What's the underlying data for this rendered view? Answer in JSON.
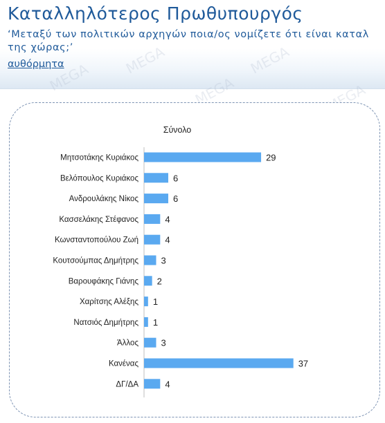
{
  "header": {
    "title": "Καταλληλότερος Πρωθυπουργός",
    "subtitle": "‘Μεταξύ των πολιτικών αρχηγών ποια/ος νομίζετε ότι είναι καταλ\nτης χώρας;’",
    "note": "αυθόρμητα"
  },
  "watermark_text": "MEGA",
  "colors": {
    "title": "#1f5a9a",
    "bar": "#5aa9f0",
    "panel_border": "#7d93b3"
  },
  "chart_data": {
    "type": "bar",
    "orientation": "horizontal",
    "title": "Σύνολο",
    "categories": [
      "Μητσοτάκης Κυριάκος",
      "Βελόπουλος Κυριάκος",
      "Ανδρουλάκης Νίκος",
      "Κασσελάκης Στέφανος",
      "Κωνσταντοπούλου Ζωή",
      "Κουτσούμπας Δημήτρης",
      "Βαρουφάκης Γιάνης",
      "Χαρίτσης Αλέξης",
      "Νατσιός Δημήτρης",
      "Άλλος",
      "Κανένας",
      "ΔΓ/ΔΑ"
    ],
    "values": [
      29,
      6,
      6,
      4,
      4,
      3,
      2,
      1,
      1,
      3,
      37,
      4
    ],
    "xlim": [
      0,
      40
    ],
    "grid": false,
    "legend": "none"
  }
}
